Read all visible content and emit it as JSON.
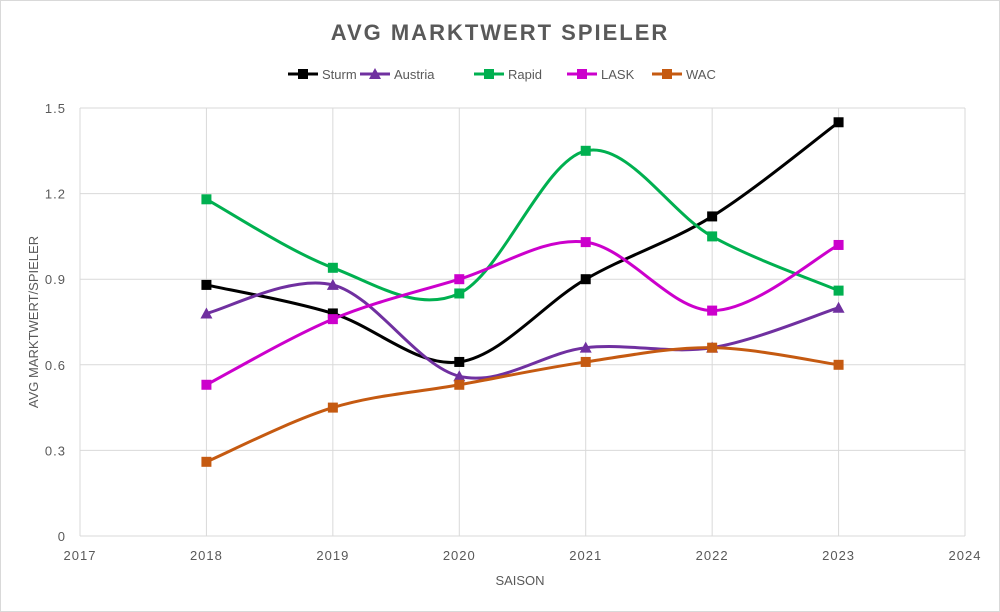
{
  "chart_data": {
    "type": "line",
    "title": "AVG MARKTWERT SPIELER",
    "xlabel": "SAISON",
    "ylabel": "AVG MARKTWERT/SPIELER",
    "xlim": [
      2017,
      2024
    ],
    "ylim": [
      0,
      1.5
    ],
    "xticks": [
      2017,
      2018,
      2019,
      2020,
      2021,
      2022,
      2023,
      2024
    ],
    "yticks": [
      0,
      0.3,
      0.6,
      0.9,
      1.2,
      1.5
    ],
    "grid": true,
    "legend_position": "top",
    "x": [
      2018,
      2019,
      2020,
      2021,
      2022,
      2023
    ],
    "series": [
      {
        "name": "Sturm",
        "color": "#000000",
        "marker": "square",
        "values": [
          0.88,
          0.78,
          0.61,
          0.9,
          1.12,
          1.45
        ]
      },
      {
        "name": "Austria",
        "color": "#7030a0",
        "marker": "triangle",
        "values": [
          0.78,
          0.88,
          0.56,
          0.66,
          0.66,
          0.8
        ]
      },
      {
        "name": "Rapid",
        "color": "#00b050",
        "marker": "square",
        "values": [
          1.18,
          0.94,
          0.85,
          1.35,
          1.05,
          0.86
        ]
      },
      {
        "name": "LASK",
        "color": "#cc00cc",
        "marker": "square",
        "values": [
          0.53,
          0.76,
          0.9,
          1.03,
          0.79,
          1.02
        ]
      },
      {
        "name": "WAC",
        "color": "#c55a11",
        "marker": "square",
        "values": [
          0.26,
          0.45,
          0.53,
          0.61,
          0.66,
          0.6
        ]
      }
    ]
  }
}
